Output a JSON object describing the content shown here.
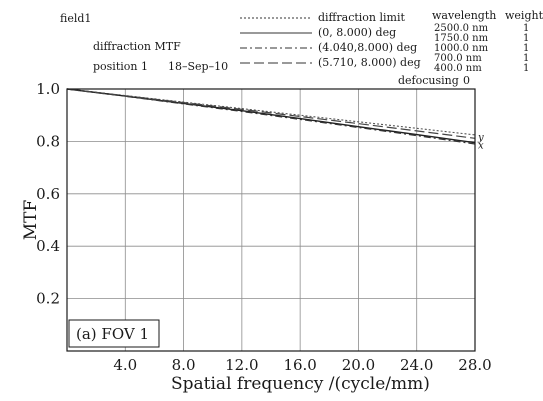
{
  "header": {
    "field_label": "field1",
    "mode_label": "diffraction MTF",
    "position_label": "position 1",
    "date": "18–Sep–10",
    "legend_items": [
      {
        "label": "diffraction limit",
        "style": "dotted"
      },
      {
        "label": "(0, 8.000) deg",
        "style": "solid"
      },
      {
        "label": "(4.040,8.000) deg",
        "style": "dashdot"
      },
      {
        "label": "(5.710, 8.000) deg",
        "style": "longdash"
      }
    ],
    "wavelength_title": "wavelength",
    "weight_title": "weight",
    "wavelengths": [
      "2500.0 nm",
      "1750.0 nm",
      "1000.0 nm",
      "700.0 nm",
      "400.0 nm"
    ],
    "weights": [
      "1",
      "1",
      "1",
      "1",
      "1"
    ],
    "defocusing_label": "defocusing",
    "defocusing_value": "0"
  },
  "chart_data": {
    "type": "line",
    "xlabel": "Spatial frequency /(cycle/mm)",
    "ylabel": "MTF",
    "annotation": "(a) FOV 1",
    "xlim": [
      0,
      28
    ],
    "ylim": [
      0,
      1.0
    ],
    "x_ticks": [
      4.0,
      8.0,
      12.0,
      16.0,
      20.0,
      24.0,
      28.0
    ],
    "x_tick_labels": [
      "4.0",
      "8.0",
      "12.0",
      "16.0",
      "20.0",
      "24.0",
      "28.0"
    ],
    "y_ticks": [
      0.2,
      0.4,
      0.6,
      0.8,
      1.0
    ],
    "y_tick_labels": [
      "0.2",
      "0.4",
      "0.6",
      "0.8",
      "1.0"
    ],
    "grid": true,
    "curve_end_labels": [
      "y",
      "x"
    ],
    "series": [
      {
        "name": "diffraction limit",
        "x": [
          0,
          4,
          8,
          12,
          16,
          20,
          24,
          28
        ],
        "y": [
          1.0,
          0.975,
          0.95,
          0.925,
          0.9,
          0.875,
          0.85,
          0.825
        ]
      },
      {
        "name": "(0, 8.000) deg",
        "x": [
          0,
          4,
          8,
          12,
          16,
          20,
          24,
          28
        ],
        "y": [
          1.0,
          0.973,
          0.945,
          0.917,
          0.887,
          0.856,
          0.826,
          0.795
        ]
      },
      {
        "name": "(4.040,8.000) deg",
        "x": [
          0,
          4,
          8,
          12,
          16,
          20,
          24,
          28
        ],
        "y": [
          1.0,
          0.972,
          0.943,
          0.914,
          0.884,
          0.853,
          0.822,
          0.79
        ]
      },
      {
        "name": "(5.710, 8.000) deg",
        "x": [
          0,
          4,
          8,
          12,
          16,
          20,
          24,
          28
        ],
        "y": [
          1.0,
          0.974,
          0.948,
          0.922,
          0.895,
          0.868,
          0.84,
          0.812
        ]
      }
    ]
  }
}
